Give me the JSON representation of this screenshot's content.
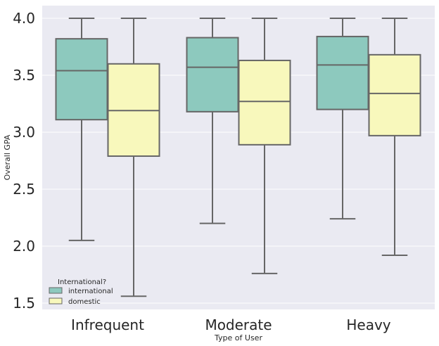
{
  "chart_data": {
    "type": "box",
    "title": "",
    "xlabel": "Type of User",
    "ylabel": "Overall GPA",
    "ylim": [
      1.45,
      4.12
    ],
    "yticks": [
      "1.5",
      "2.0",
      "2.5",
      "3.0",
      "3.5",
      "4.0"
    ],
    "categories": [
      "Infrequent",
      "Moderate",
      "Heavy"
    ],
    "grid": true,
    "legend": {
      "title": "International?",
      "placement": "lower-left",
      "entries": [
        "international",
        "domestic"
      ]
    },
    "series": [
      {
        "name": "international",
        "color": "#8dc9be",
        "boxes": [
          {
            "min": 2.05,
            "q1": 3.11,
            "median": 3.54,
            "q3": 3.82,
            "max": 4.0
          },
          {
            "min": 2.2,
            "q1": 3.18,
            "median": 3.57,
            "q3": 3.83,
            "max": 4.0
          },
          {
            "min": 2.24,
            "q1": 3.2,
            "median": 3.59,
            "q3": 3.84,
            "max": 4.0
          }
        ]
      },
      {
        "name": "domestic",
        "color": "#f8f8bc",
        "boxes": [
          {
            "min": 1.56,
            "q1": 2.79,
            "median": 3.19,
            "q3": 3.6,
            "max": 4.0
          },
          {
            "min": 1.76,
            "q1": 2.89,
            "median": 3.27,
            "q3": 3.63,
            "max": 4.0
          },
          {
            "min": 1.92,
            "q1": 2.97,
            "median": 3.34,
            "q3": 3.68,
            "max": 4.0
          }
        ]
      }
    ]
  }
}
